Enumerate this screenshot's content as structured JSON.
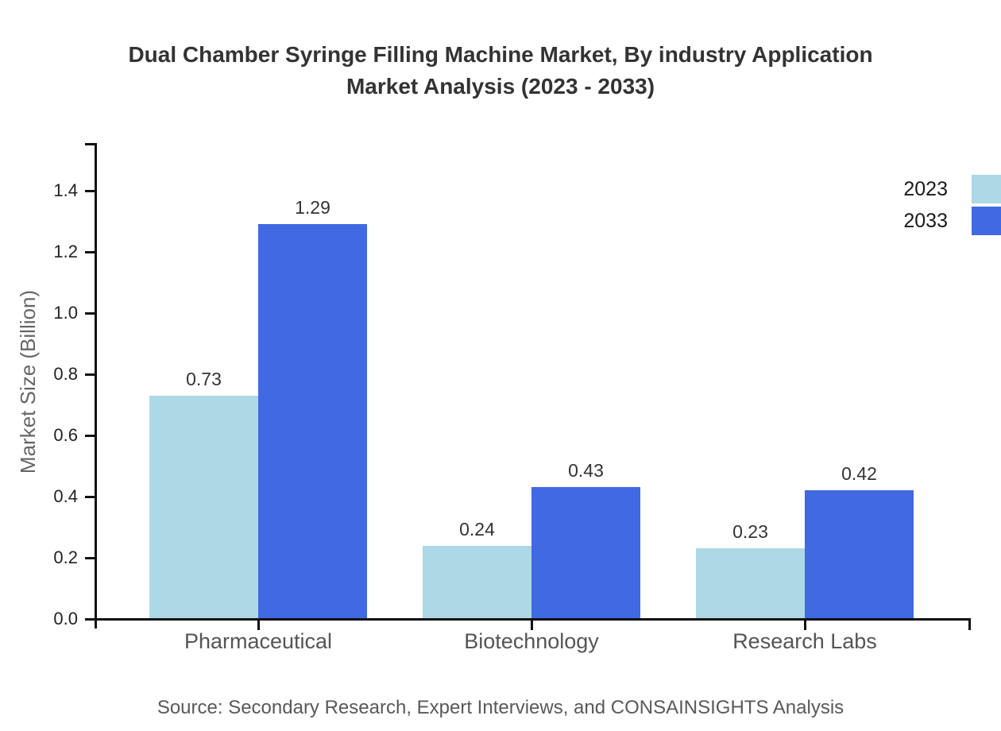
{
  "title": {
    "line1": "Dual Chamber Syringe Filling Machine Market, By industry Application",
    "line2": "Market Analysis (2023 - 2033)"
  },
  "source": "Source: Secondary Research, Expert Interviews, and CONSAINSIGHTS Analysis",
  "chart_data": {
    "type": "bar",
    "categories": [
      "Pharmaceutical",
      "Biotechnology",
      "Research Labs"
    ],
    "series": [
      {
        "name": "2023",
        "color": "#ADD8E6",
        "values": [
          0.73,
          0.24,
          0.23
        ]
      },
      {
        "name": "2033",
        "color": "#4169E1",
        "values": [
          1.29,
          0.43,
          0.42
        ]
      }
    ],
    "title": "Dual Chamber Syringe Filling Machine Market, By industry Application Market Analysis (2023 - 2033)",
    "xlabel": "",
    "ylabel": "Market Size (Billion)",
    "yticks": [
      0.0,
      0.2,
      0.4,
      0.6,
      0.8,
      1.0,
      1.2,
      1.4
    ],
    "ylim": [
      0,
      1.55
    ],
    "grid": false,
    "legend_position": "top-right",
    "value_labels": true
  },
  "colors": {
    "series_2023": "#ADD8E6",
    "series_2033": "#4169E1",
    "axis": "#111111",
    "title_text": "#333333",
    "tick_text": "#222222",
    "category_text": "#555555",
    "source_text": "#595959"
  }
}
